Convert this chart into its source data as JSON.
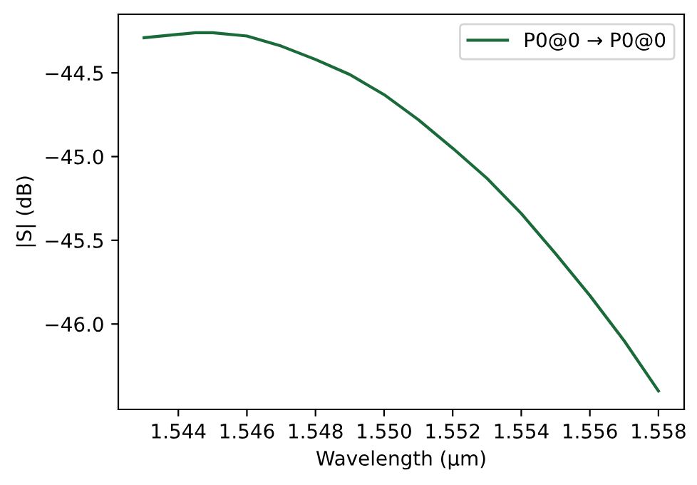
{
  "chart_data": {
    "type": "line",
    "xlabel": "Wavelength (µm)",
    "ylabel": "|S| (dB)",
    "x": [
      1.543,
      1.544,
      1.5445,
      1.545,
      1.546,
      1.547,
      1.548,
      1.549,
      1.55,
      1.551,
      1.552,
      1.553,
      1.554,
      1.555,
      1.556,
      1.557,
      1.558
    ],
    "series": [
      {
        "name": "P0@0 → P0@0",
        "color": "#1b6b3a",
        "values": [
          -44.29,
          -44.27,
          -44.26,
          -44.26,
          -44.28,
          -44.34,
          -44.42,
          -44.51,
          -44.63,
          -44.78,
          -44.95,
          -45.13,
          -45.34,
          -45.58,
          -45.83,
          -46.1,
          -46.4
        ]
      }
    ],
    "xlim": [
      1.54225,
      1.55875
    ],
    "ylim": [
      -46.51,
      -44.15
    ],
    "xticks": [
      {
        "value": 1.544,
        "label": "1.544"
      },
      {
        "value": 1.546,
        "label": "1.546"
      },
      {
        "value": 1.548,
        "label": "1.548"
      },
      {
        "value": 1.55,
        "label": "1.550"
      },
      {
        "value": 1.552,
        "label": "1.552"
      },
      {
        "value": 1.554,
        "label": "1.554"
      },
      {
        "value": 1.556,
        "label": "1.556"
      },
      {
        "value": 1.558,
        "label": "1.558"
      }
    ],
    "yticks": [
      {
        "value": -46.0,
        "label": "−46.0"
      },
      {
        "value": -45.5,
        "label": "−45.5"
      },
      {
        "value": -45.0,
        "label": "−45.0"
      },
      {
        "value": -44.5,
        "label": "−44.5"
      }
    ],
    "legend": "top right",
    "grid": false
  }
}
